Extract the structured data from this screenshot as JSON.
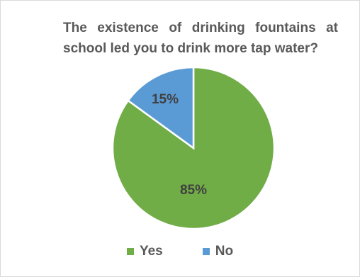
{
  "chart_data": {
    "type": "pie",
    "title": "The existence of drinking fountains at school led you to drink more tap water?",
    "categories": [
      "Yes",
      "No"
    ],
    "values": [
      85,
      15
    ],
    "value_labels": [
      "85%",
      "15%"
    ],
    "colors": [
      "#70ad47",
      "#5b9bd5"
    ],
    "legend_position": "bottom"
  }
}
